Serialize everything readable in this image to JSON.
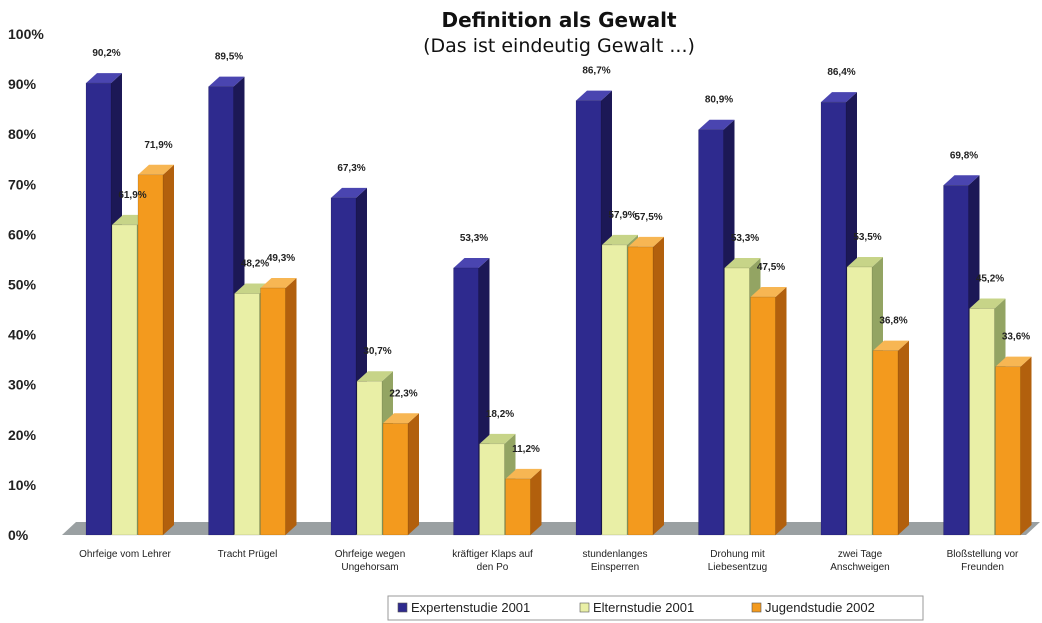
{
  "chart_data": {
    "type": "bar",
    "title": "Definition als Gewalt",
    "subtitle": "(Das ist eindeutig Gewalt ...)",
    "xlabel": "",
    "ylabel": "",
    "ylim": [
      0,
      100
    ],
    "yticks": [
      "0%",
      "10%",
      "20%",
      "30%",
      "40%",
      "50%",
      "60%",
      "70%",
      "80%",
      "90%",
      "100%"
    ],
    "categories": [
      [
        "Ohrfeige vom Lehrer"
      ],
      [
        "Tracht Prügel"
      ],
      [
        "Ohrfeige wegen",
        "Ungehorsam"
      ],
      [
        "kräftiger Klaps auf",
        "den Po"
      ],
      [
        "stundenlanges",
        "Einsperren"
      ],
      [
        "Drohung mit",
        "Liebesentzug"
      ],
      [
        "zwei Tage",
        "Anschweigen"
      ],
      [
        "Bloßstellung vor",
        "Freunden"
      ]
    ],
    "series": [
      {
        "name": "Expertenstudie 2001",
        "values": [
          90.2,
          89.5,
          67.3,
          53.3,
          86.7,
          80.9,
          86.4,
          69.8
        ],
        "labels": [
          "90,2%",
          "89,5%",
          "67,3%",
          "53,3%",
          "86,7%",
          "80,9%",
          "86,4%",
          "69,8%"
        ],
        "front": "#2e2a8e",
        "side": "#1c1856",
        "top": "#4a45b0"
      },
      {
        "name": "Elternstudie 2001",
        "values": [
          61.9,
          48.2,
          30.7,
          18.2,
          57.9,
          53.3,
          53.5,
          45.2
        ],
        "labels": [
          "61,9%",
          "48,2%",
          "30,7%",
          "18,2%",
          "57,9%",
          "53,3%",
          "53,5%",
          "45,2%"
        ],
        "front": "#e9efa6",
        "side": "#93a463",
        "top": "#c7d488"
      },
      {
        "name": "Jugendstudie 2002",
        "values": [
          71.9,
          49.3,
          22.3,
          11.2,
          57.5,
          47.5,
          36.8,
          33.6
        ],
        "labels": [
          "71,9%",
          "49,3%",
          "22,3%",
          "11,2%",
          "57,5%",
          "47,5%",
          "36,8%",
          "33,6%"
        ],
        "front": "#f39a1e",
        "side": "#b2600d",
        "top": "#f7b653"
      }
    ],
    "legend_position": "bottom",
    "floor_color": "#9aa0a2"
  }
}
